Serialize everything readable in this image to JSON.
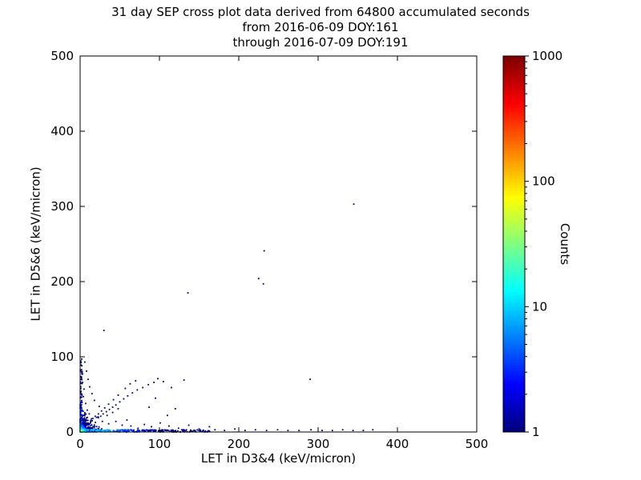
{
  "chart_data": {
    "type": "scatter",
    "title": "31 day SEP cross plot data derived from 64800 accumulated seconds",
    "subtitle1": "from 2016-06-09 DOY:161",
    "subtitle2": "through 2016-07-09 DOY:191",
    "xlabel": "LET in D3&4 (keV/micron)",
    "ylabel": "LET in D5&6 (keV/micron)",
    "xlim": [
      0,
      500
    ],
    "ylim": [
      0,
      500
    ],
    "xticks": [
      0,
      100,
      200,
      300,
      400,
      500
    ],
    "yticks": [
      0,
      100,
      200,
      300,
      400,
      500
    ],
    "grid": false,
    "legend": "none",
    "colorbar": {
      "label": "Counts",
      "scale": "log",
      "range": [
        1,
        1000
      ],
      "major_ticks": [
        1,
        10,
        100,
        1000
      ],
      "colormap": "jet",
      "stops": [
        [
          0,
          "#00007f"
        ],
        [
          0.125,
          "#0000ff"
        ],
        [
          0.375,
          "#00ffff"
        ],
        [
          0.625,
          "#ffff00"
        ],
        [
          0.875,
          "#ff0000"
        ],
        [
          1,
          "#7f0000"
        ]
      ]
    },
    "points": [
      [
        345,
        303
      ],
      [
        232,
        241
      ],
      [
        225,
        204
      ],
      [
        231,
        197
      ],
      [
        136,
        185
      ],
      [
        30,
        135
      ],
      [
        290,
        70
      ],
      [
        131,
        69
      ],
      [
        98,
        71
      ],
      [
        93,
        66
      ],
      [
        86,
        63
      ],
      [
        79,
        59
      ],
      [
        72,
        56
      ],
      [
        66,
        52
      ],
      [
        60,
        48
      ],
      [
        55,
        44
      ],
      [
        50,
        40
      ],
      [
        45,
        36
      ],
      [
        41,
        33
      ],
      [
        37,
        30
      ],
      [
        33,
        27
      ],
      [
        29,
        24
      ],
      [
        26,
        21
      ],
      [
        23,
        19
      ],
      [
        57,
        58
      ],
      [
        63,
        64
      ],
      [
        70,
        68
      ],
      [
        48,
        49
      ],
      [
        42,
        43
      ],
      [
        36,
        37
      ],
      [
        31,
        32
      ],
      [
        27,
        28
      ],
      [
        23,
        24
      ],
      [
        19,
        21
      ],
      [
        16,
        18
      ],
      [
        34,
        22
      ],
      [
        41,
        26
      ],
      [
        48,
        31
      ],
      [
        28,
        14
      ],
      [
        36,
        11
      ],
      [
        45,
        14
      ],
      [
        53,
        9
      ],
      [
        59,
        16
      ],
      [
        24,
        34
      ],
      [
        18,
        42
      ],
      [
        15,
        51
      ],
      [
        12,
        60
      ],
      [
        10,
        70
      ],
      [
        8,
        81
      ],
      [
        6,
        93
      ],
      [
        5,
        57
      ],
      [
        4,
        47
      ],
      [
        3,
        66
      ],
      [
        7,
        38
      ],
      [
        9,
        29
      ],
      [
        2,
        88
      ],
      [
        3,
        77
      ],
      [
        2,
        97
      ],
      [
        64,
        8
      ],
      [
        73,
        5
      ],
      [
        81,
        10
      ],
      [
        90,
        7
      ],
      [
        101,
        12
      ],
      [
        112,
        8
      ],
      [
        124,
        5
      ],
      [
        137,
        9
      ],
      [
        150,
        4
      ],
      [
        163,
        7
      ],
      [
        170,
        3
      ],
      [
        182,
        2
      ],
      [
        195,
        4
      ],
      [
        208,
        2
      ],
      [
        221,
        3
      ],
      [
        235,
        2
      ],
      [
        249,
        3
      ],
      [
        262,
        2
      ],
      [
        276,
        2
      ],
      [
        291,
        3
      ],
      [
        305,
        2
      ],
      [
        318,
        2
      ],
      [
        331,
        3
      ],
      [
        344,
        2
      ],
      [
        357,
        2
      ],
      [
        369,
        3
      ],
      [
        120,
        31
      ],
      [
        110,
        22
      ],
      [
        87,
        33
      ],
      [
        95,
        45
      ],
      [
        105,
        67
      ],
      [
        115,
        59
      ],
      [
        2,
        2,
        45
      ],
      [
        1,
        1,
        70
      ],
      [
        3,
        1,
        28
      ],
      [
        1,
        3,
        28
      ],
      [
        4,
        2,
        14
      ],
      [
        2,
        4,
        14
      ],
      [
        6,
        1,
        9
      ],
      [
        1,
        6,
        9
      ],
      [
        5,
        5,
        7
      ],
      [
        8,
        2,
        5
      ],
      [
        2,
        8,
        5
      ],
      [
        10,
        1,
        4
      ],
      [
        1,
        10,
        4
      ],
      [
        12,
        2,
        3
      ],
      [
        2,
        12,
        3
      ],
      [
        15,
        1,
        2
      ],
      [
        1,
        15,
        2
      ],
      [
        18,
        1,
        2
      ],
      [
        1,
        18,
        2
      ]
    ],
    "dense_cluster": {
      "seed": 42,
      "n": 700,
      "scale_x": 5,
      "scale_y": 5,
      "max": 34,
      "peak": 60
    },
    "axis_strips": {
      "seed": 7,
      "x_strip": {
        "n": 300,
        "max": 165,
        "thickness": 3,
        "peak": 14
      },
      "y_strip": {
        "n": 130,
        "max": 96,
        "thickness": 2.5,
        "peak": 8
      }
    }
  }
}
